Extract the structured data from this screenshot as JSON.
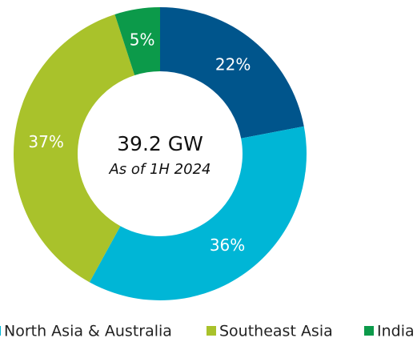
{
  "chart_data": {
    "type": "pie",
    "categories": [
      null,
      "North Asia & Australia",
      "Southeast Asia",
      "India"
    ],
    "values": [
      22,
      36,
      37,
      5
    ],
    "value_labels": [
      "22%",
      "36%",
      "37%",
      "5%"
    ],
    "colors": [
      "#00558c",
      "#00b6d6",
      "#a9c22b",
      "#0c9a4a"
    ],
    "center_title": "39.2 GW",
    "center_subtitle": "As of 1H 2024"
  }
}
